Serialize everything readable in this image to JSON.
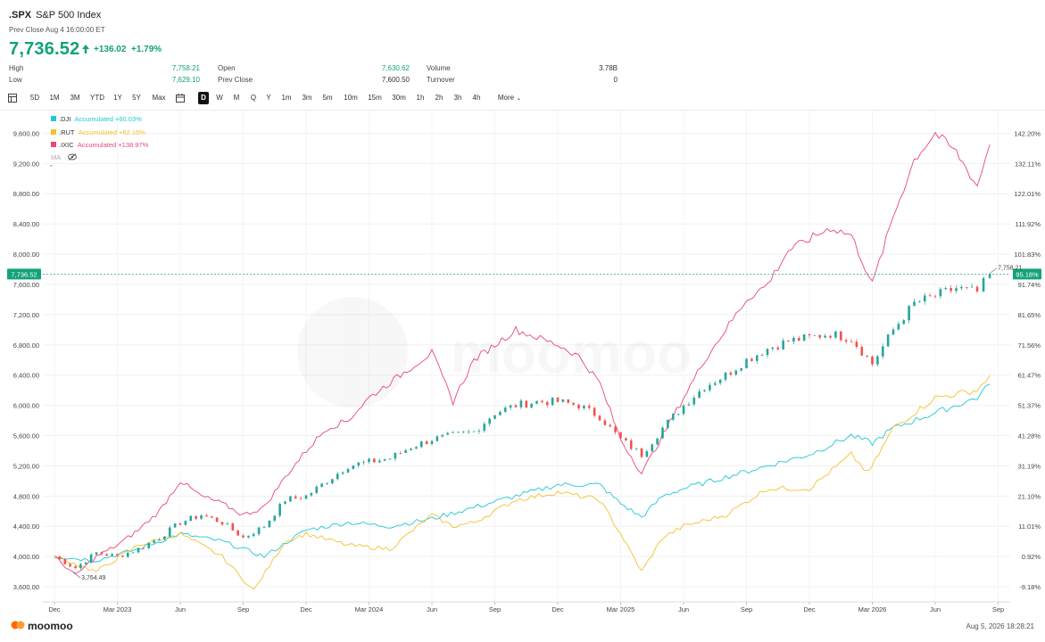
{
  "header": {
    "symbol": ".SPX",
    "name": "S&P 500 Index",
    "prev_close_time": "Prev Close Aug 4 16:00:00 ET",
    "price": "7,736.52",
    "change": "+136.02",
    "change_pct": "+1.79%",
    "up_color": "#12a27a"
  },
  "stats": {
    "high_label": "High",
    "high": "7,758.21",
    "low_label": "Low",
    "low": "7,629.10",
    "open_label": "Open",
    "open": "7,630.62",
    "prevclose_label": "Prev Close",
    "prevclose": "7,600.50",
    "volume_label": "Volume",
    "volume": "3.78B",
    "turnover_label": "Turnover",
    "turnover": "0"
  },
  "toolbar": {
    "ranges": [
      "5D",
      "1M",
      "3M",
      "YTD",
      "1Y",
      "5Y",
      "Max"
    ],
    "intervals": [
      "D",
      "W",
      "M",
      "Q",
      "Y",
      "1m",
      "3m",
      "5m",
      "10m",
      "15m",
      "30m",
      "1h",
      "2h",
      "3h",
      "4h"
    ],
    "active_interval": "D",
    "more_label": "More"
  },
  "legend": [
    {
      "symbol": ".DJI",
      "text": "Accumulated +60.03%",
      "color": "#1fc7d4"
    },
    {
      "symbol": ".RUT",
      "text": "Accumulated +62.15%",
      "color": "#f2c12e"
    },
    {
      "symbol": ".IXIC",
      "text": "Accumulated +138.97%",
      "color": "#e8467c"
    }
  ],
  "ma_label": "MA",
  "watermark": "moomoo",
  "footer": {
    "brand": "moomoo",
    "timestamp": "Aug 5, 2026 18:28:21"
  },
  "chart_data": {
    "type": "line",
    "main_series": ".SPX",
    "candle_colors": {
      "up": "#26a69a",
      "down": "#ef5350"
    },
    "x_labels": [
      "Dec",
      "Mar 2023",
      "Jun",
      "Sep",
      "Dec",
      "Mar 2024",
      "Jun",
      "Sep",
      "Dec",
      "Mar 2025",
      "Jun",
      "Sep",
      "Dec",
      "Mar 2026",
      "Jun",
      "Sep"
    ],
    "y_left_ticks": [
      "9,600.00",
      "9,200.00",
      "8,800.00",
      "8,400.00",
      "8,000.00",
      "7,600.00",
      "7,200.00",
      "6,800.00",
      "6,400.00",
      "6,000.00",
      "5,600.00",
      "5,200.00",
      "4,800.00",
      "4,400.00",
      "4,000.00",
      "3,600.00"
    ],
    "y_right_ticks": [
      "142.20%",
      "132.11%",
      "122.01%",
      "111.92%",
      "101.83%",
      "91.74%",
      "81.65%",
      "71.56%",
      "61.47%",
      "51.37%",
      "41.28%",
      "31.19%",
      "21.10%",
      "11.01%",
      "0.92%",
      "-9.18%"
    ],
    "ylim_left": [
      3400,
      9900
    ],
    "current_price_label": "7,736.52",
    "current_pct_label": "95.18%",
    "high_marker_label": "7,758.21",
    "low_marker_label": "3,764.49",
    "x_months": [
      0,
      3,
      6,
      9,
      12,
      15,
      18,
      21,
      24,
      27,
      30,
      33,
      36,
      39,
      42,
      45
    ],
    "series": [
      {
        "name": ".SPX",
        "color": "#26a69a",
        "x": [
          0,
          1,
          2,
          3,
          4,
          5,
          6,
          7,
          8,
          9,
          10,
          11,
          12,
          13,
          14,
          15,
          16,
          17,
          18,
          19,
          20,
          21,
          22,
          23,
          24,
          25,
          26,
          27,
          28,
          29,
          30,
          31,
          32,
          33,
          34,
          35,
          36,
          37,
          38,
          39,
          40,
          41,
          42,
          43,
          44,
          44.6
        ],
        "values": [
          4000,
          3850,
          4050,
          4000,
          4100,
          4250,
          4450,
          4550,
          4450,
          4250,
          4400,
          4750,
          4800,
          5000,
          5200,
          5250,
          5300,
          5450,
          5550,
          5600,
          5650,
          5900,
          6000,
          6050,
          6050,
          6000,
          5850,
          5550,
          5350,
          5700,
          6000,
          6250,
          6400,
          6600,
          6750,
          6850,
          6900,
          6950,
          6880,
          6550,
          7000,
          7350,
          7450,
          7550,
          7500,
          7736
        ]
      },
      {
        "name": ".DJI",
        "color": "#1fc7d4",
        "x": [
          0,
          2,
          4,
          6,
          8,
          10,
          12,
          14,
          16,
          18,
          20,
          22,
          24,
          26,
          27,
          28,
          29,
          30,
          32,
          34,
          36,
          38,
          39,
          40,
          42,
          44,
          44.6
        ],
        "values": [
          4000,
          3950,
          4100,
          4300,
          4200,
          4000,
          4350,
          4450,
          4400,
          4500,
          4650,
          4800,
          4950,
          4950,
          4700,
          4520,
          4800,
          4900,
          5050,
          5200,
          5350,
          5600,
          5500,
          5700,
          5900,
          6100,
          6280
        ]
      },
      {
        "name": ".RUT",
        "color": "#f2c12e",
        "x": [
          0,
          2,
          4,
          6,
          8,
          9.5,
          11,
          12,
          14,
          16,
          18,
          19,
          20,
          22,
          24,
          26,
          27,
          28,
          29,
          30,
          32,
          34,
          36,
          38,
          38.8,
          40,
          42,
          44,
          44.6
        ],
        "values": [
          4000,
          3800,
          4150,
          4300,
          4000,
          3550,
          4200,
          4300,
          4150,
          4100,
          4550,
          4400,
          4450,
          4750,
          4850,
          4750,
          4300,
          3800,
          4250,
          4400,
          4550,
          4900,
          4900,
          5350,
          5100,
          5700,
          6100,
          6200,
          6400
        ]
      },
      {
        "name": ".IXIC",
        "color": "#e8467c",
        "x": [
          0,
          1,
          2,
          3,
          4,
          5,
          6,
          7,
          8,
          9,
          10,
          11,
          12,
          13,
          14,
          15,
          16,
          17,
          18,
          19,
          20,
          21,
          22,
          23,
          24,
          25,
          26,
          27,
          28,
          29,
          30,
          31,
          32,
          33,
          34,
          35,
          36,
          37,
          38,
          39,
          40,
          41,
          42,
          43,
          44,
          44.6
        ],
        "values": [
          4000,
          3750,
          4000,
          4150,
          4350,
          4600,
          5000,
          4800,
          4700,
          4550,
          4650,
          5050,
          5400,
          5700,
          5800,
          6100,
          6300,
          6500,
          6700,
          6050,
          6600,
          6800,
          7000,
          6900,
          6800,
          6650,
          6300,
          5550,
          5100,
          5600,
          6100,
          6600,
          7000,
          7400,
          7600,
          8050,
          8200,
          8350,
          8250,
          7600,
          8500,
          9250,
          9600,
          9350,
          8900,
          9450
        ]
      }
    ]
  }
}
